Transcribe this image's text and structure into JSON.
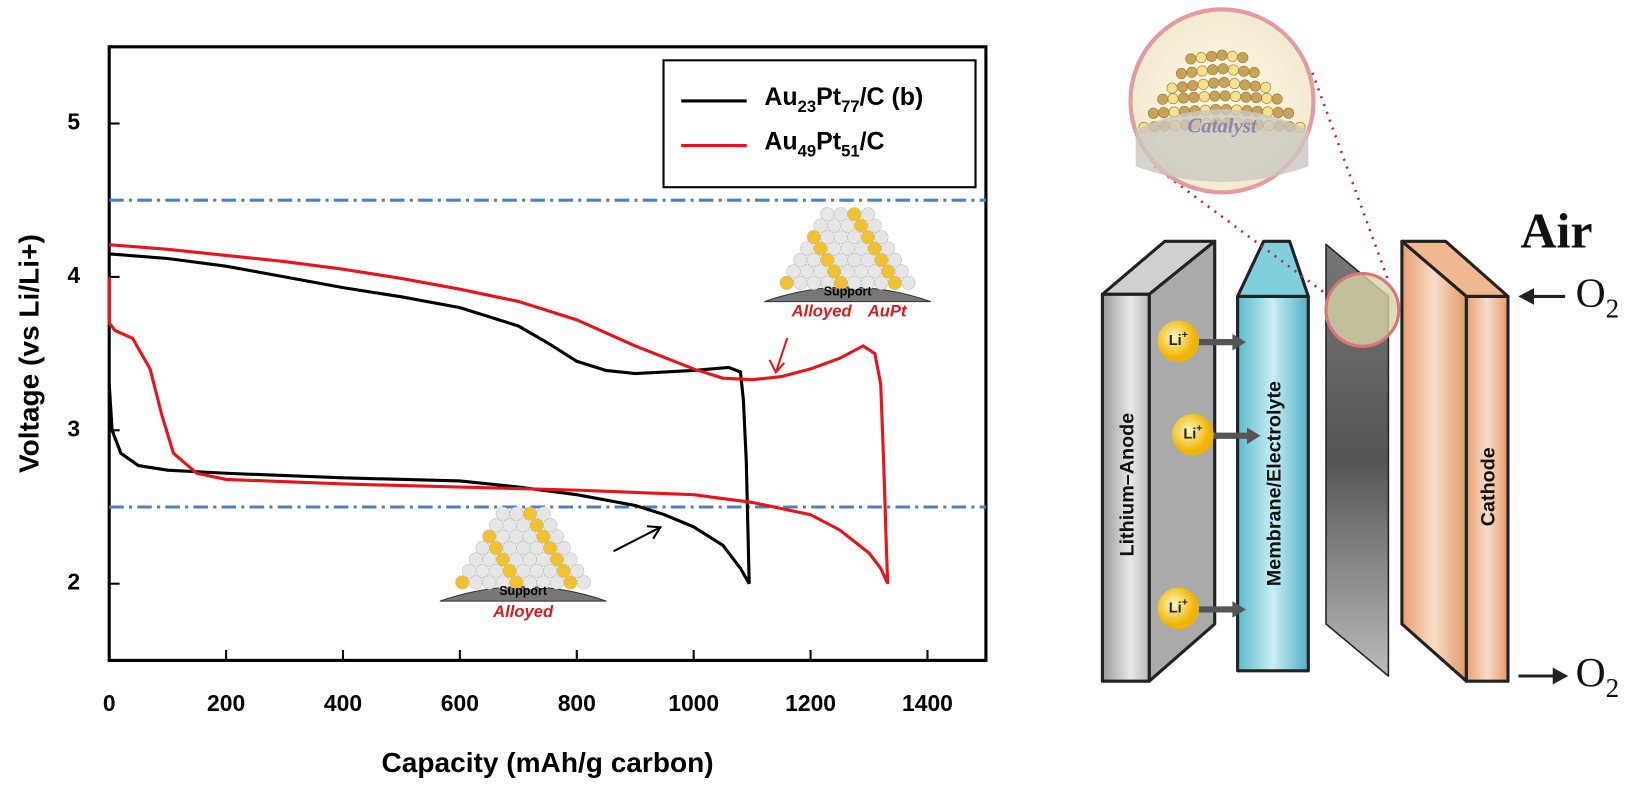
{
  "chart_data": {
    "type": "line",
    "x_label": "Capacity (mAh/g carbon)",
    "y_label": "Voltage (vs Li/Li+)",
    "xlim": [
      0,
      1500
    ],
    "xticks": [
      0,
      200,
      400,
      600,
      800,
      1000,
      1200,
      1400
    ],
    "ylim": [
      1.5,
      5.5
    ],
    "yticks": [
      2,
      3,
      4,
      5
    ],
    "legend": "upper right",
    "reference_lines": {
      "values": [
        4.5,
        2.5
      ],
      "color": "#4f81bd"
    },
    "series": [
      {
        "name": "Au23Pt77/C (b)",
        "color": "#000000",
        "x": [
          0,
          100,
          200,
          300,
          400,
          500,
          600,
          700,
          750,
          800,
          850,
          900,
          1000,
          1060,
          1080,
          1085,
          1090,
          1095,
          1080,
          1050,
          1000,
          950,
          900,
          800,
          700,
          600,
          400,
          200,
          100,
          50,
          20,
          5,
          0
        ],
        "values": [
          4.15,
          4.12,
          4.07,
          4.0,
          3.93,
          3.87,
          3.8,
          3.68,
          3.57,
          3.45,
          3.39,
          3.37,
          3.39,
          3.41,
          3.38,
          3.2,
          2.8,
          2.0,
          2.1,
          2.25,
          2.37,
          2.45,
          2.51,
          2.58,
          2.63,
          2.67,
          2.69,
          2.72,
          2.74,
          2.77,
          2.85,
          3.0,
          3.3
        ]
      },
      {
        "name": "Au49Pt51/C",
        "color": "#e8141b",
        "x": [
          0,
          100,
          200,
          300,
          400,
          500,
          600,
          700,
          800,
          900,
          1000,
          1050,
          1100,
          1150,
          1200,
          1250,
          1290,
          1310,
          1320,
          1325,
          1330,
          1332,
          1320,
          1300,
          1250,
          1200,
          1100,
          1000,
          800,
          600,
          400,
          200,
          150,
          110,
          90,
          70,
          40,
          10,
          0,
          0
        ],
        "values": [
          4.21,
          4.18,
          4.14,
          4.1,
          4.05,
          3.99,
          3.92,
          3.84,
          3.72,
          3.55,
          3.4,
          3.34,
          3.33,
          3.35,
          3.4,
          3.47,
          3.55,
          3.5,
          3.3,
          2.8,
          2.2,
          2.0,
          2.1,
          2.2,
          2.35,
          2.45,
          2.53,
          2.58,
          2.61,
          2.63,
          2.65,
          2.68,
          2.72,
          2.85,
          3.1,
          3.4,
          3.6,
          3.65,
          3.7,
          4.0
        ]
      }
    ],
    "annotations": {
      "upper_support": "Support",
      "upper_alloyed": "Alloyed",
      "upper_aupt": "AuPt",
      "lower_support": "Support",
      "lower_alloyed": "Alloyed"
    }
  },
  "diagram": {
    "catalyst": "Catalyst",
    "air": "Air",
    "o2_in": "O2",
    "o2_out": "O2",
    "li_ions": [
      "Li+",
      "Li+",
      "Li+"
    ],
    "anode": "Lithium–Anode",
    "membrane": "Membrane/Electrolyte",
    "cathode": "Cathode"
  }
}
